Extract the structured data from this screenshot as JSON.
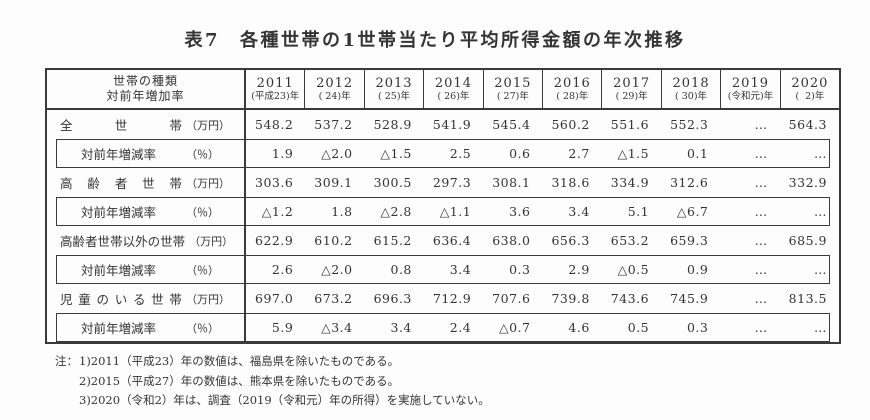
{
  "colors": {
    "ink": "#333333",
    "border": "#3a3a3a",
    "background": "#fdfdfd"
  },
  "title": {
    "label": "表7",
    "text": "各種世帯の1世帯当たり平均所得金額の年次推移"
  },
  "table": {
    "corner": {
      "line1": "世帯の種類",
      "line2": "対前年増加率"
    },
    "years": [
      {
        "year": "2011",
        "era": "(平成23)年"
      },
      {
        "year": "2012",
        "era": "( 24)年"
      },
      {
        "year": "2013",
        "era": "( 25)年"
      },
      {
        "year": "2014",
        "era": "( 26)年"
      },
      {
        "year": "2015",
        "era": "( 27)年"
      },
      {
        "year": "2016",
        "era": "( 28)年"
      },
      {
        "year": "2017",
        "era": "( 29)年"
      },
      {
        "year": "2018",
        "era": "( 30)年"
      },
      {
        "year": "2019",
        "era": "(令和元)年"
      },
      {
        "year": "2020",
        "era": "(  2)年"
      }
    ],
    "unit_amount": "（万円）",
    "unit_rate": "（％）",
    "rate_label": "対前年増減率",
    "groups": [
      {
        "name": "全世帯",
        "values": [
          "548.2",
          "537.2",
          "528.9",
          "541.9",
          "545.4",
          "560.2",
          "551.6",
          "552.3",
          "…",
          "564.3"
        ],
        "rates": [
          "1.9",
          "△2.0",
          "△1.5",
          "2.5",
          "0.6",
          "2.7",
          "△1.5",
          "0.1",
          "…",
          "…"
        ]
      },
      {
        "name": "高齢者世帯",
        "values": [
          "303.6",
          "309.1",
          "300.5",
          "297.3",
          "308.1",
          "318.6",
          "334.9",
          "312.6",
          "…",
          "332.9"
        ],
        "rates": [
          "△1.2",
          "1.8",
          "△2.8",
          "△1.1",
          "3.6",
          "3.4",
          "5.1",
          "△6.7",
          "…",
          "…"
        ]
      },
      {
        "name": "高齢者世帯以外の世帯",
        "values": [
          "622.9",
          "610.2",
          "615.2",
          "636.4",
          "638.0",
          "656.3",
          "653.2",
          "659.3",
          "…",
          "685.9"
        ],
        "rates": [
          "2.6",
          "△2.0",
          "0.8",
          "3.4",
          "0.3",
          "2.9",
          "△0.5",
          "0.9",
          "…",
          "…"
        ]
      },
      {
        "name": "児童のいる世帯",
        "values": [
          "697.0",
          "673.2",
          "696.3",
          "712.9",
          "707.6",
          "739.8",
          "743.6",
          "745.9",
          "…",
          "813.5"
        ],
        "rates": [
          "5.9",
          "△3.4",
          "3.4",
          "2.4",
          "△0.7",
          "4.6",
          "0.5",
          "0.3",
          "…",
          "…"
        ]
      }
    ]
  },
  "notes": {
    "prefix": "注：",
    "items": [
      "1)2011（平成23）年の数値は、福島県を除いたものである。",
      "2)2015（平成27）年の数値は、熊本県を除いたものである。",
      "3)2020（令和2）年は、調査（2019（令和元）年の所得）を実施していない。"
    ]
  }
}
